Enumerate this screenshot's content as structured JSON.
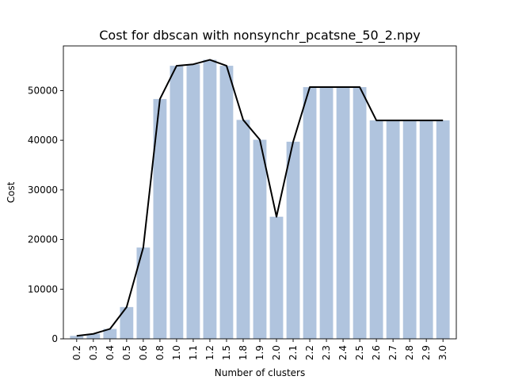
{
  "chart_data": {
    "type": "bar",
    "title": "Cost for dbscan with nonsynchr_pcatsne_50_2.npy",
    "xlabel": "Number of clusters",
    "ylabel": "Cost",
    "categories": [
      "0.2",
      "0.3",
      "0.4",
      "0.5",
      "0.6",
      "0.8",
      "1.0",
      "1.1",
      "1.2",
      "1.5",
      "1.8",
      "1.9",
      "2.0",
      "2.1",
      "2.2",
      "2.3",
      "2.4",
      "2.5",
      "2.6",
      "2.7",
      "2.8",
      "2.9",
      "3.0"
    ],
    "values": [
      600,
      1000,
      2000,
      6400,
      18400,
      48300,
      55000,
      55300,
      56200,
      55000,
      44100,
      40100,
      24600,
      39700,
      50700,
      50700,
      50700,
      50700,
      44000,
      44000,
      44000,
      44000,
      44000
    ],
    "series": [
      {
        "type": "bar",
        "values": [
          600,
          1000,
          2000,
          6400,
          18400,
          48300,
          55000,
          55300,
          56200,
          55000,
          44100,
          40100,
          24600,
          39700,
          50700,
          50700,
          50700,
          50700,
          44000,
          44000,
          44000,
          44000,
          44000
        ],
        "color": "#b0c4de"
      },
      {
        "type": "line",
        "values": [
          600,
          1000,
          2000,
          6400,
          18400,
          48300,
          55000,
          55300,
          56200,
          55000,
          44100,
          40100,
          24600,
          39700,
          50700,
          50700,
          50700,
          50700,
          44000,
          44000,
          44000,
          44000,
          44000
        ],
        "color": "#000000"
      }
    ],
    "ylim": [
      0,
      59000
    ],
    "yticks": [
      0,
      10000,
      20000,
      30000,
      40000,
      50000
    ],
    "ytick_labels": [
      "0",
      "10000",
      "20000",
      "30000",
      "40000",
      "50000"
    ],
    "grid": false,
    "legend": false
  }
}
